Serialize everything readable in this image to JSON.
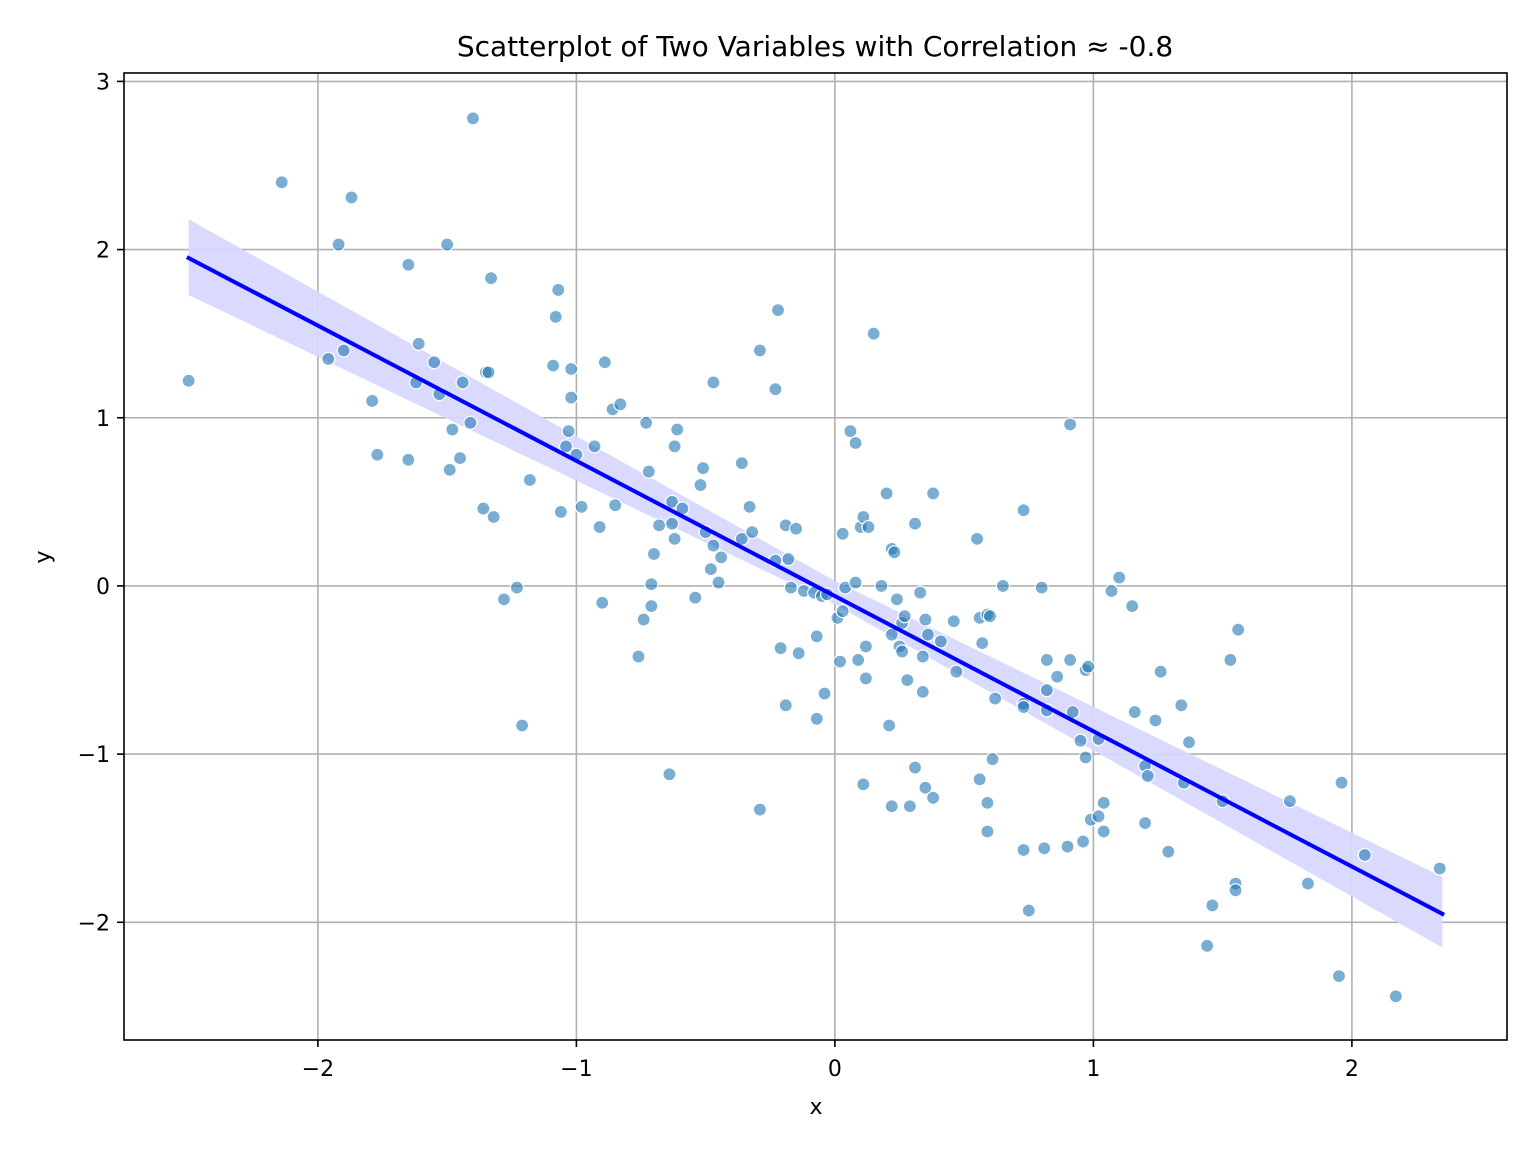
{
  "chart_data": {
    "type": "scatter",
    "title": "Scatterplot of Two Variables with Correlation ≈ -0.8",
    "xlabel": "x",
    "ylabel": "y",
    "xlim": [
      -2.75,
      2.6
    ],
    "ylim": [
      -2.7,
      3.05
    ],
    "xticks": [
      -2,
      -1,
      0,
      1,
      2
    ],
    "yticks": [
      -2,
      -1,
      0,
      1,
      2,
      3
    ],
    "xtick_labels": [
      "−2",
      "−1",
      "0",
      "1",
      "2"
    ],
    "ytick_labels": [
      "−2",
      "−1",
      "0",
      "1",
      "2",
      "3"
    ],
    "grid": true,
    "colors": {
      "points": "#1f77b4",
      "regression_line": "#0000ff",
      "confidence_band": "#d8d8ff"
    },
    "regression": {
      "x": [
        -2.5,
        2.35
      ],
      "y": [
        1.95,
        -1.95
      ],
      "band": [
        {
          "x": -2.5,
          "lower": 1.73,
          "upper": 2.18
        },
        {
          "x": 0.0,
          "lower": -0.11,
          "upper": 0.03
        },
        {
          "x": 2.35,
          "lower": -2.15,
          "upper": -1.73
        }
      ]
    },
    "points": [
      {
        "x": -2.5,
        "y": 1.22
      },
      {
        "x": -2.14,
        "y": 2.4
      },
      {
        "x": -1.87,
        "y": 2.31
      },
      {
        "x": -1.92,
        "y": 2.03
      },
      {
        "x": -1.96,
        "y": 1.35
      },
      {
        "x": -1.9,
        "y": 1.4
      },
      {
        "x": -1.79,
        "y": 1.1
      },
      {
        "x": -1.77,
        "y": 0.78
      },
      {
        "x": -1.65,
        "y": 1.91
      },
      {
        "x": -1.61,
        "y": 1.44
      },
      {
        "x": -1.62,
        "y": 1.21
      },
      {
        "x": -1.65,
        "y": 0.75
      },
      {
        "x": -1.55,
        "y": 1.33
      },
      {
        "x": -1.53,
        "y": 1.14
      },
      {
        "x": -1.5,
        "y": 2.03
      },
      {
        "x": -1.48,
        "y": 0.93
      },
      {
        "x": -1.49,
        "y": 0.69
      },
      {
        "x": -1.45,
        "y": 0.76
      },
      {
        "x": -1.44,
        "y": 1.21
      },
      {
        "x": -1.41,
        "y": 0.97
      },
      {
        "x": -1.4,
        "y": 2.78
      },
      {
        "x": -1.35,
        "y": 1.27
      },
      {
        "x": -1.34,
        "y": 1.27
      },
      {
        "x": -1.33,
        "y": 1.83
      },
      {
        "x": -1.36,
        "y": 0.46
      },
      {
        "x": -1.32,
        "y": 0.41
      },
      {
        "x": -1.28,
        "y": -0.08
      },
      {
        "x": -1.23,
        "y": -0.01
      },
      {
        "x": -1.21,
        "y": -0.83
      },
      {
        "x": -1.18,
        "y": 0.63
      },
      {
        "x": -1.09,
        "y": 1.31
      },
      {
        "x": -1.08,
        "y": 1.6
      },
      {
        "x": -1.07,
        "y": 1.76
      },
      {
        "x": -1.06,
        "y": 0.44
      },
      {
        "x": -1.04,
        "y": 0.83
      },
      {
        "x": -1.03,
        "y": 0.92
      },
      {
        "x": -1.02,
        "y": 1.29
      },
      {
        "x": -1.02,
        "y": 1.12
      },
      {
        "x": -1.0,
        "y": 0.78
      },
      {
        "x": -0.98,
        "y": 0.47
      },
      {
        "x": -0.93,
        "y": 0.83
      },
      {
        "x": -0.91,
        "y": 0.35
      },
      {
        "x": -0.9,
        "y": -0.1
      },
      {
        "x": -0.89,
        "y": 1.33
      },
      {
        "x": -0.86,
        "y": 1.05
      },
      {
        "x": -0.85,
        "y": 0.48
      },
      {
        "x": -0.83,
        "y": 1.08
      },
      {
        "x": -0.76,
        "y": -0.42
      },
      {
        "x": -0.74,
        "y": -0.2
      },
      {
        "x": -0.73,
        "y": 0.97
      },
      {
        "x": -0.72,
        "y": 0.68
      },
      {
        "x": -0.71,
        "y": 0.01
      },
      {
        "x": -0.71,
        "y": -0.12
      },
      {
        "x": -0.7,
        "y": 0.19
      },
      {
        "x": -0.68,
        "y": 0.36
      },
      {
        "x": -0.64,
        "y": -1.12
      },
      {
        "x": -0.63,
        "y": 0.5
      },
      {
        "x": -0.63,
        "y": 0.37
      },
      {
        "x": -0.62,
        "y": 0.28
      },
      {
        "x": -0.62,
        "y": 0.83
      },
      {
        "x": -0.61,
        "y": 0.93
      },
      {
        "x": -0.59,
        "y": 0.46
      },
      {
        "x": -0.54,
        "y": -0.07
      },
      {
        "x": -0.52,
        "y": 0.6
      },
      {
        "x": -0.51,
        "y": 0.7
      },
      {
        "x": -0.5,
        "y": 0.32
      },
      {
        "x": -0.48,
        "y": 0.1
      },
      {
        "x": -0.47,
        "y": 0.24
      },
      {
        "x": -0.47,
        "y": 1.21
      },
      {
        "x": -0.45,
        "y": 0.02
      },
      {
        "x": -0.44,
        "y": 0.17
      },
      {
        "x": -0.36,
        "y": 0.73
      },
      {
        "x": -0.36,
        "y": 0.28
      },
      {
        "x": -0.33,
        "y": 0.47
      },
      {
        "x": -0.32,
        "y": 0.32
      },
      {
        "x": -0.29,
        "y": 1.4
      },
      {
        "x": -0.29,
        "y": -1.33
      },
      {
        "x": -0.23,
        "y": 1.17
      },
      {
        "x": -0.22,
        "y": 1.64
      },
      {
        "x": -0.23,
        "y": 0.15
      },
      {
        "x": -0.21,
        "y": -0.37
      },
      {
        "x": -0.19,
        "y": 0.36
      },
      {
        "x": -0.19,
        "y": -0.71
      },
      {
        "x": -0.18,
        "y": 0.16
      },
      {
        "x": -0.17,
        "y": -0.01
      },
      {
        "x": -0.15,
        "y": 0.34
      },
      {
        "x": -0.14,
        "y": -0.4
      },
      {
        "x": -0.12,
        "y": -0.03
      },
      {
        "x": -0.08,
        "y": -0.04
      },
      {
        "x": -0.07,
        "y": -0.3
      },
      {
        "x": -0.07,
        "y": -0.79
      },
      {
        "x": -0.05,
        "y": -0.06
      },
      {
        "x": -0.04,
        "y": -0.64
      },
      {
        "x": -0.03,
        "y": -0.05
      },
      {
        "x": 0.01,
        "y": -0.19
      },
      {
        "x": 0.02,
        "y": -0.45
      },
      {
        "x": 0.03,
        "y": -0.15
      },
      {
        "x": 0.03,
        "y": 0.31
      },
      {
        "x": 0.04,
        "y": -0.01
      },
      {
        "x": 0.06,
        "y": 0.92
      },
      {
        "x": 0.08,
        "y": 0.85
      },
      {
        "x": 0.08,
        "y": 0.02
      },
      {
        "x": 0.09,
        "y": -0.44
      },
      {
        "x": 0.1,
        "y": 0.35
      },
      {
        "x": 0.11,
        "y": 0.41
      },
      {
        "x": 0.11,
        "y": -1.18
      },
      {
        "x": 0.12,
        "y": -0.36
      },
      {
        "x": 0.12,
        "y": -0.55
      },
      {
        "x": 0.13,
        "y": 0.35
      },
      {
        "x": 0.15,
        "y": 1.5
      },
      {
        "x": 0.18,
        "y": 0.0
      },
      {
        "x": 0.2,
        "y": 0.55
      },
      {
        "x": 0.21,
        "y": -0.83
      },
      {
        "x": 0.22,
        "y": 0.22
      },
      {
        "x": 0.22,
        "y": -0.29
      },
      {
        "x": 0.22,
        "y": -1.31
      },
      {
        "x": 0.23,
        "y": 0.2
      },
      {
        "x": 0.24,
        "y": -0.08
      },
      {
        "x": 0.25,
        "y": -0.36
      },
      {
        "x": 0.26,
        "y": -0.39
      },
      {
        "x": 0.26,
        "y": -0.22
      },
      {
        "x": 0.27,
        "y": -0.18
      },
      {
        "x": 0.29,
        "y": -1.31
      },
      {
        "x": 0.28,
        "y": -0.56
      },
      {
        "x": 0.31,
        "y": 0.37
      },
      {
        "x": 0.31,
        "y": -1.08
      },
      {
        "x": 0.33,
        "y": -0.04
      },
      {
        "x": 0.34,
        "y": -0.63
      },
      {
        "x": 0.34,
        "y": -0.42
      },
      {
        "x": 0.35,
        "y": -0.2
      },
      {
        "x": 0.35,
        "y": -1.2
      },
      {
        "x": 0.36,
        "y": -0.29
      },
      {
        "x": 0.38,
        "y": 0.55
      },
      {
        "x": 0.38,
        "y": -1.26
      },
      {
        "x": 0.41,
        "y": -0.33
      },
      {
        "x": 0.46,
        "y": -0.21
      },
      {
        "x": 0.47,
        "y": -0.51
      },
      {
        "x": 0.55,
        "y": 0.28
      },
      {
        "x": 0.56,
        "y": -0.19
      },
      {
        "x": 0.56,
        "y": -1.15
      },
      {
        "x": 0.57,
        "y": -0.34
      },
      {
        "x": 0.59,
        "y": -0.17
      },
      {
        "x": 0.6,
        "y": -0.18
      },
      {
        "x": 0.59,
        "y": -1.29
      },
      {
        "x": 0.59,
        "y": -1.46
      },
      {
        "x": 0.61,
        "y": -1.03
      },
      {
        "x": 0.62,
        "y": -0.67
      },
      {
        "x": 0.65,
        "y": 0.0
      },
      {
        "x": 0.73,
        "y": -0.7
      },
      {
        "x": 0.73,
        "y": -0.72
      },
      {
        "x": 0.73,
        "y": 0.45
      },
      {
        "x": 0.73,
        "y": -1.57
      },
      {
        "x": 0.75,
        "y": -1.93
      },
      {
        "x": 0.8,
        "y": -0.01
      },
      {
        "x": 0.81,
        "y": -1.56
      },
      {
        "x": 0.82,
        "y": -0.44
      },
      {
        "x": 0.82,
        "y": -0.62
      },
      {
        "x": 0.82,
        "y": -0.74
      },
      {
        "x": 0.86,
        "y": -0.54
      },
      {
        "x": 0.9,
        "y": -1.55
      },
      {
        "x": 0.91,
        "y": -0.44
      },
      {
        "x": 0.91,
        "y": 0.96
      },
      {
        "x": 0.92,
        "y": -0.75
      },
      {
        "x": 0.95,
        "y": -0.92
      },
      {
        "x": 0.96,
        "y": -1.52
      },
      {
        "x": 0.97,
        "y": -0.5
      },
      {
        "x": 0.97,
        "y": -1.02
      },
      {
        "x": 0.98,
        "y": -0.48
      },
      {
        "x": 0.99,
        "y": -1.39
      },
      {
        "x": 1.02,
        "y": -1.37
      },
      {
        "x": 1.02,
        "y": -0.91
      },
      {
        "x": 1.04,
        "y": -1.29
      },
      {
        "x": 1.04,
        "y": -1.46
      },
      {
        "x": 1.07,
        "y": -0.03
      },
      {
        "x": 1.1,
        "y": 0.05
      },
      {
        "x": 1.15,
        "y": -0.12
      },
      {
        "x": 1.16,
        "y": -0.75
      },
      {
        "x": 1.2,
        "y": -1.07
      },
      {
        "x": 1.2,
        "y": -1.41
      },
      {
        "x": 1.21,
        "y": -1.13
      },
      {
        "x": 1.24,
        "y": -0.8
      },
      {
        "x": 1.26,
        "y": -0.51
      },
      {
        "x": 1.29,
        "y": -1.58
      },
      {
        "x": 1.34,
        "y": -0.71
      },
      {
        "x": 1.35,
        "y": -1.17
      },
      {
        "x": 1.37,
        "y": -0.93
      },
      {
        "x": 1.44,
        "y": -2.14
      },
      {
        "x": 1.46,
        "y": -1.9
      },
      {
        "x": 1.5,
        "y": -1.28
      },
      {
        "x": 1.53,
        "y": -0.44
      },
      {
        "x": 1.55,
        "y": -1.77
      },
      {
        "x": 1.55,
        "y": -1.81
      },
      {
        "x": 1.56,
        "y": -0.26
      },
      {
        "x": 1.76,
        "y": -1.28
      },
      {
        "x": 1.83,
        "y": -1.77
      },
      {
        "x": 1.95,
        "y": -2.32
      },
      {
        "x": 1.96,
        "y": -1.17
      },
      {
        "x": 2.05,
        "y": -1.6
      },
      {
        "x": 2.17,
        "y": -2.44
      },
      {
        "x": 2.34,
        "y": -1.68
      }
    ]
  }
}
